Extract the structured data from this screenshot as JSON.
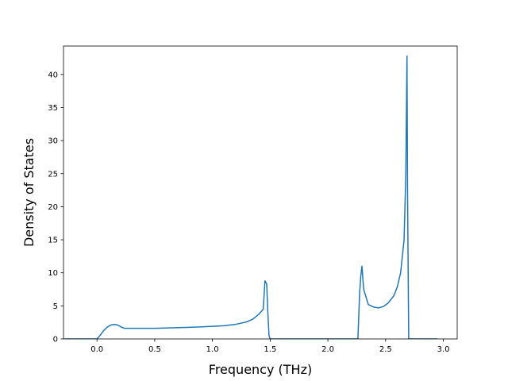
{
  "chart_data": {
    "type": "line",
    "title": "",
    "xlabel": "Frequency (THz)",
    "ylabel": "Density of States",
    "xlim": [
      -0.29,
      3.12
    ],
    "ylim": [
      0,
      44.3
    ],
    "grid": false,
    "color": "#1f77b4",
    "x_ticks": [
      0.0,
      0.5,
      1.0,
      1.5,
      2.0,
      2.5,
      3.0
    ],
    "x_tick_labels": [
      "0.0",
      "0.5",
      "1.0",
      "1.5",
      "2.0",
      "2.5",
      "3.0"
    ],
    "y_ticks": [
      0,
      5,
      10,
      15,
      20,
      25,
      30,
      35,
      40
    ],
    "y_tick_labels": [
      "0",
      "5",
      "10",
      "15",
      "20",
      "25",
      "30",
      "35",
      "40"
    ],
    "series": [
      {
        "x": [
          -0.28,
          -0.2,
          -0.1,
          0.0,
          0.03,
          0.06,
          0.09,
          0.12,
          0.15,
          0.18,
          0.21,
          0.24,
          0.3,
          0.5,
          0.8,
          1.0,
          1.1,
          1.2,
          1.3,
          1.35,
          1.4,
          1.44,
          1.455,
          1.47,
          1.48,
          1.49,
          1.5,
          1.6,
          2.0,
          2.2,
          2.26,
          2.275,
          2.285,
          2.295,
          2.31,
          2.35,
          2.4,
          2.44,
          2.48,
          2.52,
          2.57,
          2.6,
          2.63,
          2.66,
          2.675,
          2.685,
          2.69,
          2.7,
          2.75,
          2.95
        ],
        "y": [
          0,
          0,
          0,
          0,
          0.6,
          1.3,
          1.8,
          2.1,
          2.2,
          2.1,
          1.8,
          1.6,
          1.6,
          1.6,
          1.75,
          1.9,
          2.0,
          2.2,
          2.6,
          3.0,
          3.7,
          4.5,
          8.8,
          8.3,
          4.0,
          0.5,
          0,
          0,
          0,
          0,
          0,
          7.0,
          9.5,
          11.0,
          7.5,
          5.2,
          4.8,
          4.7,
          4.9,
          5.4,
          6.5,
          7.8,
          10.0,
          15.0,
          25.0,
          42.8,
          22.0,
          0,
          0,
          0
        ]
      }
    ]
  }
}
